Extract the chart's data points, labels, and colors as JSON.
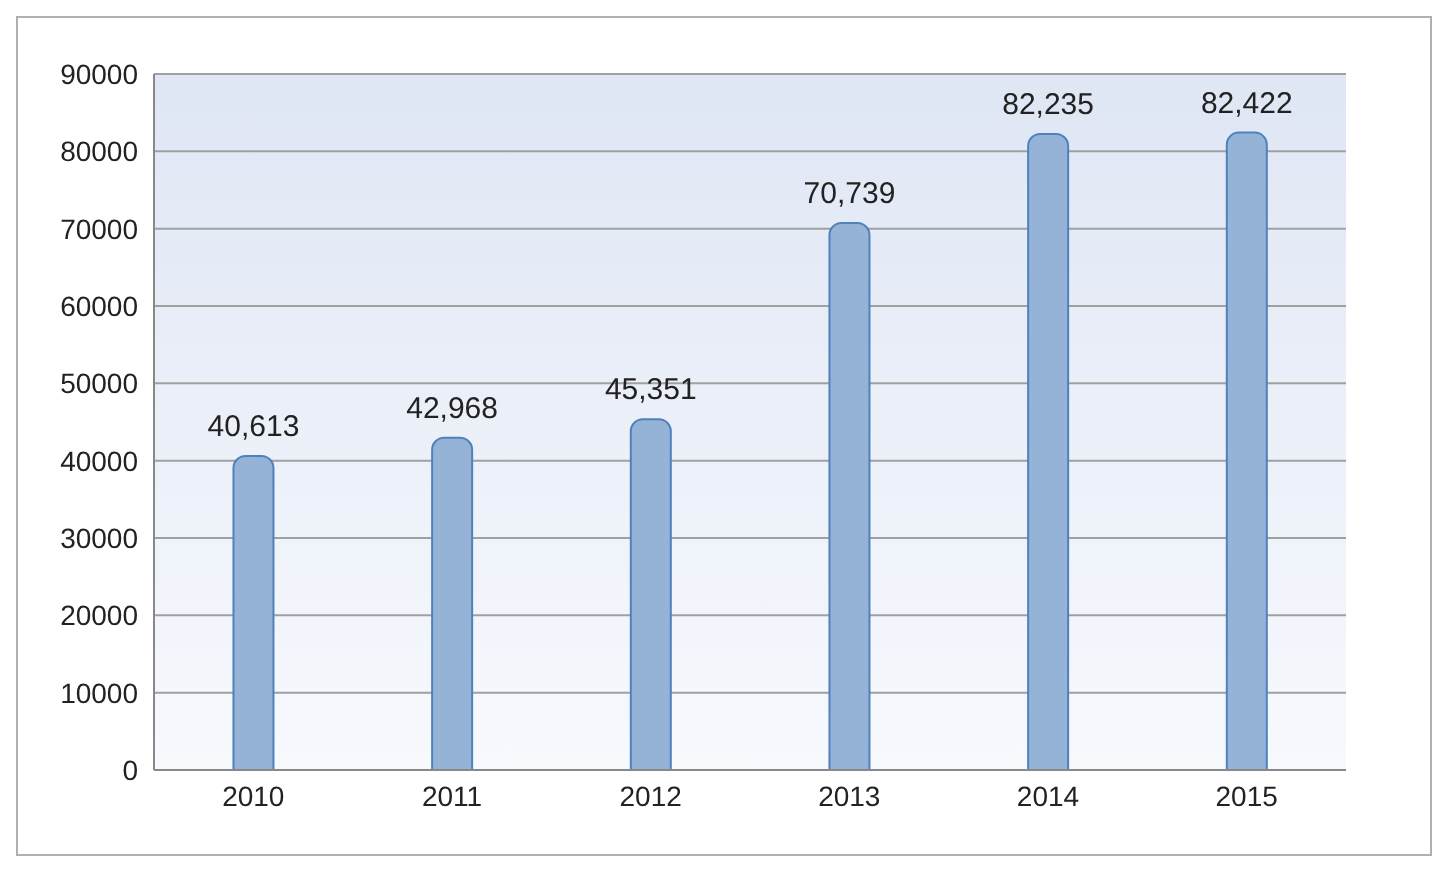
{
  "chart_data": {
    "type": "bar",
    "categories": [
      "2010",
      "2011",
      "2012",
      "2013",
      "2014",
      "2015"
    ],
    "values": [
      40613,
      42968,
      45351,
      70739,
      82235,
      82422
    ],
    "value_labels": [
      "40,613",
      "42,968",
      "45,351",
      "70,739",
      "82,235",
      "82,422"
    ],
    "color": "#95b3d7",
    "ylim": [
      0,
      90000
    ],
    "yticks": [
      0,
      10000,
      20000,
      30000,
      40000,
      50000,
      60000,
      70000,
      80000,
      90000
    ],
    "grid": "y"
  }
}
